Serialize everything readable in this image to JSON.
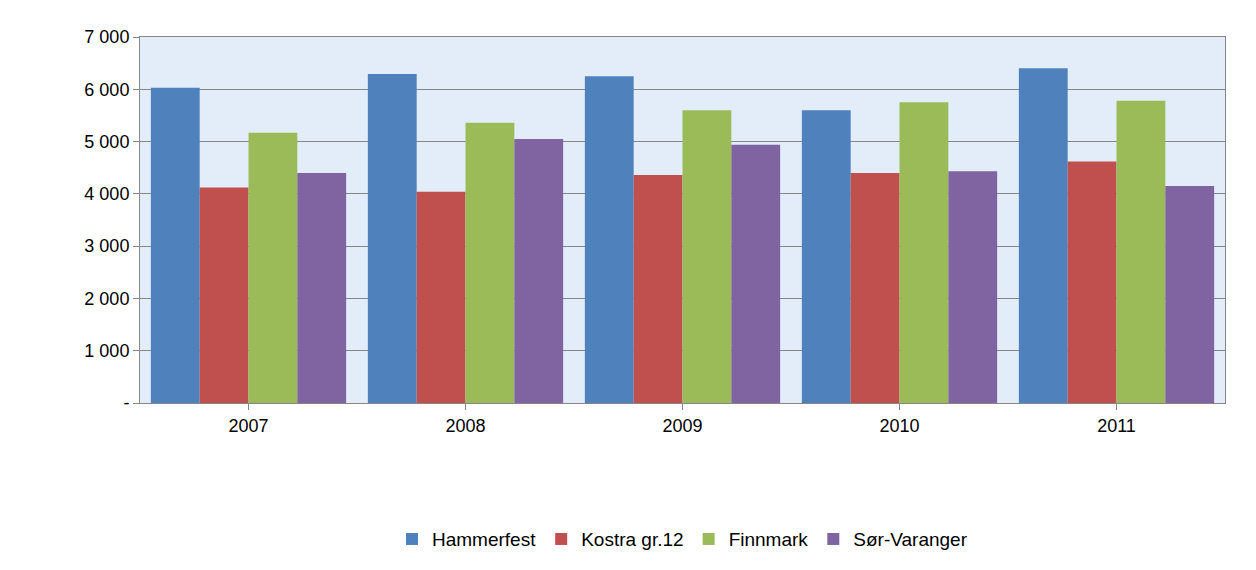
{
  "chart_data": {
    "type": "bar",
    "categories": [
      "2007",
      "2008",
      "2009",
      "2010",
      "2011"
    ],
    "series": [
      {
        "name": "Hammerfest",
        "color": "#4f81bd",
        "values": [
          6030,
          6290,
          6250,
          5600,
          6400
        ]
      },
      {
        "name": "Kostra gr.12",
        "color": "#c0504d",
        "values": [
          4120,
          4040,
          4360,
          4400,
          4620
        ]
      },
      {
        "name": "Finnmark",
        "color": "#9bbb59",
        "values": [
          5170,
          5360,
          5600,
          5750,
          5780
        ]
      },
      {
        "name": "Sør-Varanger",
        "color": "#8064a2",
        "values": [
          4400,
          5050,
          4940,
          4430,
          4150
        ]
      }
    ],
    "ylim": [
      0,
      7000
    ],
    "yticks": [
      {
        "value": 0,
        "label": "-"
      },
      {
        "value": 1000,
        "label": "1 000"
      },
      {
        "value": 2000,
        "label": "2 000"
      },
      {
        "value": 3000,
        "label": "3 000"
      },
      {
        "value": 4000,
        "label": "4 000"
      },
      {
        "value": 5000,
        "label": "5 000"
      },
      {
        "value": 6000,
        "label": "6 000"
      },
      {
        "value": 7000,
        "label": "7 000"
      }
    ],
    "grid": true,
    "legend": "bottom"
  }
}
